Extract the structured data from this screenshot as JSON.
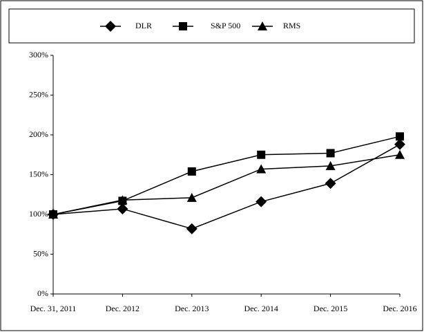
{
  "chart_data": {
    "type": "line",
    "categories": [
      "Dec. 31, 2011",
      "Dec. 2012",
      "Dec. 2013",
      "Dec. 2014",
      "Dec. 2015",
      "Dec. 2016"
    ],
    "series": [
      {
        "name": "DLR",
        "color": "#000000",
        "marker": "diamond",
        "values": [
          100,
          107,
          82,
          116,
          139,
          188
        ]
      },
      {
        "name": "S&P 500",
        "color": "#000000",
        "marker": "square",
        "values": [
          100,
          117,
          154,
          175,
          177,
          198
        ]
      },
      {
        "name": "RMS",
        "color": "#000000",
        "marker": "triangle",
        "values": [
          100,
          118,
          121,
          157,
          161,
          175
        ]
      }
    ],
    "ylim": [
      0,
      300
    ],
    "yticks": [
      {
        "value": 0,
        "label": "0%"
      },
      {
        "value": 50,
        "label": "50%"
      },
      {
        "value": 100,
        "label": "100%"
      },
      {
        "value": 150,
        "label": "150%"
      },
      {
        "value": 200,
        "label": "200%"
      },
      {
        "value": 250,
        "label": "250%"
      },
      {
        "value": 300,
        "label": "300%"
      }
    ],
    "legend": "top",
    "grid": false
  }
}
